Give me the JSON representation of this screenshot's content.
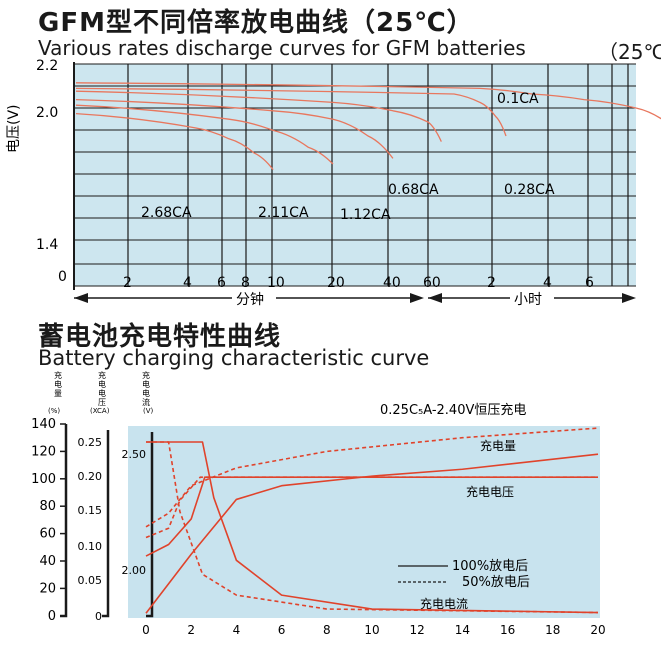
{
  "chart1": {
    "title": "GFM型不同倍率放电曲线（25℃）",
    "subtitle": "Various rates discharge curves for GFM batteries",
    "subtitle_tail": "（25℃",
    "ylabel": "电压(V)",
    "y_ticks": [
      "2.2",
      "2.0",
      "1.4",
      "0"
    ],
    "x_ticks_min": [
      "2",
      "4",
      "6",
      "8",
      "10",
      "20",
      "40",
      "60"
    ],
    "x_ticks_hour": [
      "2",
      "4",
      "6"
    ],
    "xlabel_min": "分钟",
    "xlabel_hour": "小时",
    "series_labels": [
      "0.1CA",
      "0.28CA",
      "0.68CA",
      "1.12CA",
      "2.11CA",
      "2.68CA"
    ],
    "colors": {
      "grid_bg": "#cde6ef",
      "curve": "#e8775e",
      "axis": "#1a1a1a"
    }
  },
  "chart2": {
    "title": "蓄电池充电特性曲线",
    "subtitle": "Battery charging characteristic curve",
    "axis_headers": [
      "充电量",
      "充电电压",
      "充电电流"
    ],
    "axis_units": [
      "(%)",
      "(XCA)",
      "(V)"
    ],
    "y1_ticks": [
      "140",
      "120",
      "100",
      "80",
      "60",
      "40",
      "20",
      "0"
    ],
    "y2_ticks": [
      "0.25",
      "0.20",
      "0.15",
      "0.10",
      "0.05",
      "0"
    ],
    "y3_ticks": [
      "2.50",
      "2.00"
    ],
    "x_ticks": [
      "0",
      "2",
      "4",
      "6",
      "8",
      "10",
      "12",
      "14",
      "16",
      "18",
      "20"
    ],
    "condition": "0.25C₅A-2.40V恒压充电",
    "curve_labels": {
      "capacity": "充电量",
      "voltage": "充电电压",
      "current": "充电电流"
    },
    "legend": {
      "solid": "100%放电后",
      "dashed": "50%放电后"
    },
    "colors": {
      "plot_bg": "#c8e3ee",
      "curve": "#e0432b"
    }
  },
  "chart_data": [
    {
      "type": "line",
      "title": "GFM型不同倍率放电曲线（25℃）",
      "ylabel": "电压(V)",
      "xlabel": "分钟 / 小时",
      "x_scale": "log",
      "series": [
        {
          "name": "0.1CA",
          "x_label": "hours",
          "points": [
            [
              0,
              2.09
            ],
            [
              2,
              2.07
            ],
            [
              4,
              2.05
            ],
            [
              6,
              2.03
            ],
            [
              8,
              2.0
            ],
            [
              9,
              1.96
            ]
          ]
        },
        {
          "name": "0.28CA",
          "x_label": "hours",
          "points": [
            [
              0,
              2.07
            ],
            [
              1,
              2.05
            ],
            [
              2,
              2.02
            ],
            [
              2.6,
              1.97
            ],
            [
              3,
              1.9
            ]
          ]
        },
        {
          "name": "0.68CA",
          "x_label": "minutes",
          "points": [
            [
              1,
              2.06
            ],
            [
              20,
              2.02
            ],
            [
              40,
              1.99
            ],
            [
              60,
              1.95
            ],
            [
              70,
              1.88
            ]
          ]
        },
        {
          "name": "1.12CA",
          "x_label": "minutes",
          "points": [
            [
              1,
              2.03
            ],
            [
              10,
              1.99
            ],
            [
              20,
              1.96
            ],
            [
              30,
              1.9
            ],
            [
              40,
              1.82
            ]
          ]
        },
        {
          "name": "2.11CA",
          "x_label": "minutes",
          "points": [
            [
              1,
              2.01
            ],
            [
              6,
              1.96
            ],
            [
              10,
              1.92
            ],
            [
              15,
              1.86
            ],
            [
              20,
              1.8
            ]
          ]
        },
        {
          "name": "2.68CA",
          "x_label": "minutes",
          "points": [
            [
              1,
              1.98
            ],
            [
              4,
              1.93
            ],
            [
              6,
              1.89
            ],
            [
              8,
              1.84
            ],
            [
              10,
              1.78
            ]
          ]
        }
      ],
      "ylim": [
        1.4,
        2.2
      ]
    },
    {
      "type": "line",
      "title": "蓄电池充电特性曲线",
      "xlabel": "",
      "xlim": [
        0,
        20
      ],
      "series": [
        {
          "name": "充电量 100%放电后",
          "axis": "(%)",
          "points": [
            [
              0,
              2
            ],
            [
              2,
              45
            ],
            [
              4,
              85
            ],
            [
              6,
              95
            ],
            [
              10,
              102
            ],
            [
              14,
              107
            ],
            [
              20,
              118
            ]
          ]
        },
        {
          "name": "充电量 50%放电后",
          "axis": "(%)",
          "points": [
            [
              0,
              65
            ],
            [
              1,
              75
            ],
            [
              2,
              95
            ],
            [
              4,
              108
            ],
            [
              8,
              120
            ],
            [
              14,
              130
            ],
            [
              20,
              137
            ]
          ]
        },
        {
          "name": "充电电压 100%放电后",
          "axis": "(V)",
          "points": [
            [
              0,
              2.06
            ],
            [
              1,
              2.11
            ],
            [
              2,
              2.22
            ],
            [
              2.6,
              2.4
            ],
            [
              20,
              2.4
            ]
          ]
        },
        {
          "name": "充电电压 50%放电后",
          "axis": "(V)",
          "points": [
            [
              0,
              2.14
            ],
            [
              1,
              2.18
            ],
            [
              1.5,
              2.3
            ],
            [
              2.4,
              2.4
            ],
            [
              20,
              2.4
            ]
          ]
        },
        {
          "name": "充电电流 100%放电后",
          "axis": "(XCA)",
          "points": [
            [
              0,
              0.25
            ],
            [
              2.5,
              0.25
            ],
            [
              3,
              0.17
            ],
            [
              4,
              0.08
            ],
            [
              6,
              0.03
            ],
            [
              10,
              0.01
            ],
            [
              20,
              0.005
            ]
          ]
        },
        {
          "name": "充电电流 50%放电后",
          "axis": "(XCA)",
          "points": [
            [
              0,
              0.25
            ],
            [
              1,
              0.25
            ],
            [
              1.5,
              0.15
            ],
            [
              2.5,
              0.06
            ],
            [
              4,
              0.03
            ],
            [
              8,
              0.01
            ],
            [
              20,
              0.005
            ]
          ]
        }
      ]
    }
  ]
}
